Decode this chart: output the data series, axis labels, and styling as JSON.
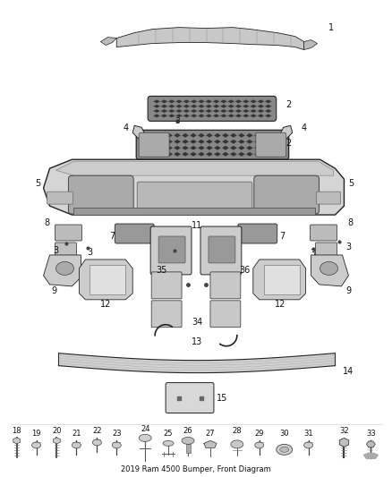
{
  "title": "2019 Ram 4500 Bumper, Front Diagram",
  "background_color": "#ffffff",
  "fig_width": 4.38,
  "fig_height": 5.33,
  "dpi": 100,
  "colors": {
    "part_fill": "#e8e8e8",
    "part_edge": "#222222",
    "label_color": "#111111",
    "dark_fill": "#555555",
    "mid_fill": "#aaaaaa",
    "light_fill": "#dddddd"
  },
  "label_fontsize": 7.0,
  "title_fontsize": 6.0
}
